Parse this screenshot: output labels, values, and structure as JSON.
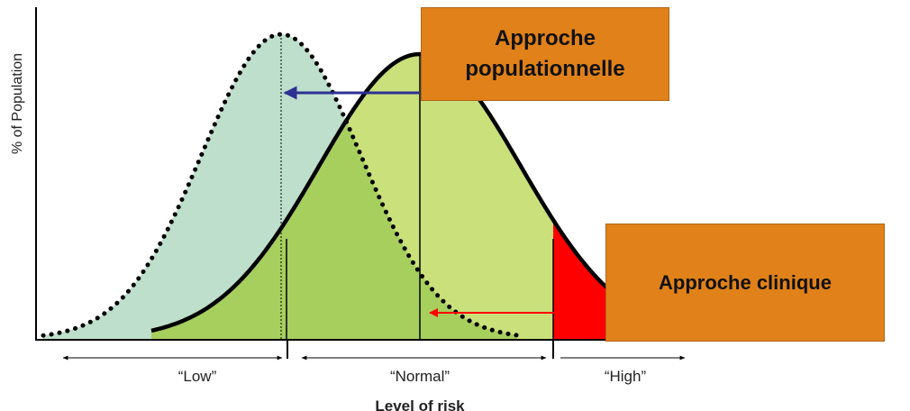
{
  "y_axis_label": "% of Population",
  "x_axis_label": "Level of risk",
  "range_labels": {
    "low": "“Low”",
    "normal": "“Normal”",
    "high": "“High”"
  },
  "boxes": {
    "population": {
      "text": "Approche populationnelle",
      "color": "#e0811a"
    },
    "clinical": {
      "text": "Approche clinique",
      "color": "#e0811a"
    }
  },
  "colors": {
    "shifted_curve_fill": "#bddfcc",
    "current_curve_fill": "#c9e07b",
    "overlap_fill": "#a6cf5e",
    "high_risk_fill": "#ff0000",
    "population_arrow": "#2e3192",
    "clinical_arrow": "#ff0000"
  }
}
